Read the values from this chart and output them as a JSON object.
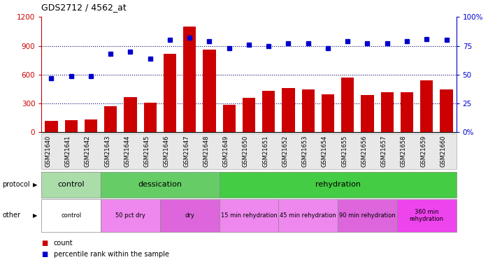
{
  "title": "GDS2712 / 4562_at",
  "samples": [
    "GSM21640",
    "GSM21641",
    "GSM21642",
    "GSM21643",
    "GSM21644",
    "GSM21645",
    "GSM21646",
    "GSM21647",
    "GSM21648",
    "GSM21649",
    "GSM21650",
    "GSM21651",
    "GSM21652",
    "GSM21653",
    "GSM21654",
    "GSM21655",
    "GSM21656",
    "GSM21657",
    "GSM21658",
    "GSM21659",
    "GSM21660"
  ],
  "bar_values": [
    120,
    130,
    135,
    270,
    370,
    305,
    820,
    1100,
    860,
    290,
    360,
    430,
    460,
    450,
    395,
    570,
    385,
    420,
    420,
    540,
    450
  ],
  "dot_values": [
    47,
    49,
    49,
    68,
    70,
    64,
    80,
    82,
    79,
    73,
    76,
    75,
    77,
    77,
    73,
    79,
    77,
    77,
    79,
    81,
    80
  ],
  "bar_color": "#cc0000",
  "dot_color": "#0000cc",
  "ylim_left": [
    0,
    1200
  ],
  "ylim_right": [
    0,
    100
  ],
  "yticks_left": [
    0,
    300,
    600,
    900,
    1200
  ],
  "yticks_right": [
    0,
    25,
    50,
    75,
    100
  ],
  "ytick_labels_left": [
    "0",
    "300",
    "600",
    "900",
    "1200"
  ],
  "ytick_labels_right": [
    "0%",
    "25",
    "50",
    "75",
    "100%"
  ],
  "protocol_labels": [
    {
      "label": "control",
      "start": 0,
      "end": 3,
      "color": "#aaddaa"
    },
    {
      "label": "dessication",
      "start": 3,
      "end": 9,
      "color": "#66cc66"
    },
    {
      "label": "rehydration",
      "start": 9,
      "end": 21,
      "color": "#44cc44"
    }
  ],
  "other_labels": [
    {
      "label": "control",
      "start": 0,
      "end": 3,
      "color": "#ffffff"
    },
    {
      "label": "50 pct dry",
      "start": 3,
      "end": 6,
      "color": "#ee88ee"
    },
    {
      "label": "dry",
      "start": 6,
      "end": 9,
      "color": "#dd66dd"
    },
    {
      "label": "15 min rehydration",
      "start": 9,
      "end": 12,
      "color": "#ee88ee"
    },
    {
      "label": "45 min rehydration",
      "start": 12,
      "end": 15,
      "color": "#ee88ee"
    },
    {
      "label": "90 min rehydration",
      "start": 15,
      "end": 18,
      "color": "#dd66dd"
    },
    {
      "label": "360 min\nrehydration",
      "start": 18,
      "end": 21,
      "color": "#ee44ee"
    }
  ],
  "legend_count_color": "#cc0000",
  "legend_dot_color": "#0000cc",
  "tick_color_left": "#cc0000",
  "tick_color_right": "#0000cc",
  "grid_dotted": [
    300,
    600,
    900
  ]
}
